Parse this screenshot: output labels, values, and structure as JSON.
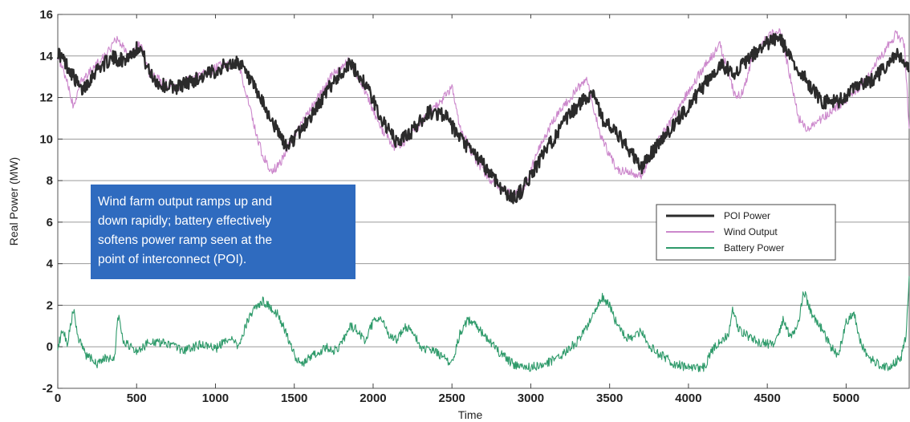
{
  "chart_data": {
    "type": "line",
    "title": "",
    "xlabel": "Time",
    "ylabel": "Real Power (MW)",
    "xlim": [
      0,
      5400
    ],
    "ylim": [
      -2,
      16
    ],
    "xticks": [
      0,
      500,
      1000,
      1500,
      2000,
      2500,
      3000,
      3500,
      4000,
      4500,
      5000
    ],
    "yticks": [
      -2,
      0,
      2,
      4,
      6,
      8,
      10,
      12,
      14,
      16
    ],
    "grid": "horizontal",
    "legend_position": "right",
    "series": [
      {
        "name": "POI Power",
        "color": "#2b2b2b",
        "x": [
          0,
          80,
          150,
          250,
          350,
          420,
          520,
          580,
          650,
          750,
          850,
          950,
          1050,
          1150,
          1250,
          1350,
          1450,
          1550,
          1650,
          1750,
          1850,
          1950,
          2050,
          2150,
          2250,
          2350,
          2450,
          2550,
          2650,
          2750,
          2850,
          2900,
          2950,
          3050,
          3150,
          3250,
          3350,
          3400,
          3450,
          3550,
          3650,
          3700,
          3800,
          3900,
          4000,
          4100,
          4200,
          4300,
          4400,
          4500,
          4580,
          4650,
          4750,
          4850,
          4950,
          5050,
          5150,
          5250,
          5320,
          5400
        ],
        "y": [
          14.2,
          13.3,
          12.3,
          13.4,
          13.9,
          13.8,
          14.5,
          13.2,
          12.6,
          12.5,
          12.8,
          13.1,
          13.5,
          13.7,
          12.4,
          11.0,
          9.6,
          10.5,
          11.6,
          12.8,
          13.6,
          12.7,
          11.0,
          9.8,
          10.4,
          11.3,
          11.2,
          10.0,
          9.2,
          8.3,
          7.3,
          7.2,
          7.6,
          8.9,
          10.1,
          11.2,
          12.0,
          12.3,
          11.0,
          10.2,
          9.2,
          8.6,
          9.7,
          10.6,
          11.6,
          12.6,
          13.6,
          13.2,
          14.0,
          14.6,
          14.9,
          13.8,
          12.8,
          11.8,
          11.8,
          12.4,
          12.8,
          13.4,
          14.1,
          13.3
        ]
      },
      {
        "name": "Wind Output",
        "color": "#cc88cc",
        "x": [
          0,
          60,
          100,
          150,
          250,
          320,
          380,
          450,
          520,
          580,
          650,
          750,
          850,
          950,
          1050,
          1150,
          1250,
          1300,
          1350,
          1400,
          1450,
          1550,
          1650,
          1750,
          1850,
          1950,
          2050,
          2150,
          2250,
          2350,
          2450,
          2500,
          2550,
          2650,
          2750,
          2850,
          2900,
          2950,
          3050,
          3150,
          3250,
          3350,
          3400,
          3450,
          3550,
          3650,
          3700,
          3800,
          3900,
          4000,
          4100,
          4200,
          4300,
          4350,
          4400,
          4500,
          4580,
          4650,
          4700,
          4750,
          4850,
          4950,
          5050,
          5150,
          5250,
          5320,
          5370,
          5400
        ],
        "y": [
          14.0,
          12.8,
          11.5,
          12.8,
          13.6,
          14.2,
          14.9,
          13.9,
          14.6,
          13.2,
          12.8,
          12.4,
          13.0,
          13.2,
          13.6,
          13.5,
          10.5,
          9.2,
          8.5,
          8.7,
          9.5,
          10.8,
          12.0,
          13.2,
          13.8,
          12.3,
          10.5,
          9.5,
          10.3,
          11.2,
          12.0,
          12.5,
          10.5,
          9.0,
          8.0,
          7.5,
          7.3,
          7.5,
          9.5,
          11.0,
          12.0,
          12.9,
          11.5,
          10.0,
          8.5,
          8.4,
          8.2,
          9.8,
          11.0,
          12.3,
          13.5,
          14.5,
          12.0,
          12.3,
          13.8,
          14.9,
          15.3,
          12.8,
          11.0,
          10.5,
          11.0,
          11.6,
          12.2,
          13.2,
          14.3,
          15.1,
          14.5,
          10.5
        ]
      },
      {
        "name": "Battery Power",
        "color": "#2e9a6a",
        "x": [
          0,
          30,
          60,
          100,
          130,
          180,
          250,
          300,
          360,
          380,
          420,
          500,
          600,
          700,
          800,
          900,
          1000,
          1100,
          1150,
          1200,
          1250,
          1300,
          1350,
          1400,
          1450,
          1500,
          1550,
          1600,
          1650,
          1700,
          1750,
          1800,
          1850,
          1900,
          1950,
          2000,
          2050,
          2100,
          2150,
          2200,
          2250,
          2300,
          2400,
          2500,
          2550,
          2600,
          2650,
          2700,
          2750,
          2800,
          2850,
          2900,
          3000,
          3100,
          3200,
          3300,
          3350,
          3400,
          3450,
          3500,
          3550,
          3600,
          3650,
          3700,
          3750,
          3800,
          3850,
          3900,
          4000,
          4100,
          4150,
          4200,
          4250,
          4280,
          4320,
          4380,
          4450,
          4550,
          4600,
          4650,
          4700,
          4730,
          4780,
          4850,
          4900,
          4950,
          5000,
          5050,
          5100,
          5150,
          5200,
          5250,
          5300,
          5350,
          5380,
          5400
        ],
        "y": [
          0.0,
          0.8,
          0.2,
          1.8,
          0.4,
          -0.4,
          -0.8,
          -0.5,
          -0.6,
          1.6,
          0.2,
          -0.2,
          0.3,
          0.1,
          -0.2,
          0.1,
          -0.1,
          0.5,
          0.0,
          1.2,
          1.8,
          2.2,
          1.9,
          1.5,
          0.6,
          -0.4,
          -0.9,
          -0.5,
          -0.3,
          0.0,
          -0.2,
          0.1,
          1.0,
          0.8,
          0.3,
          1.2,
          1.5,
          0.6,
          0.3,
          1.0,
          0.8,
          0.0,
          -0.3,
          -0.8,
          0.6,
          1.3,
          1.0,
          0.6,
          0.2,
          -0.3,
          -0.6,
          -0.9,
          -1.0,
          -0.8,
          -0.4,
          0.3,
          0.9,
          1.5,
          2.4,
          2.0,
          1.0,
          0.5,
          0.4,
          0.8,
          0.1,
          -0.3,
          -0.5,
          -0.8,
          -1.0,
          -1.0,
          -0.2,
          0.3,
          0.5,
          1.7,
          0.8,
          0.5,
          0.2,
          0.1,
          1.3,
          0.4,
          1.2,
          2.7,
          1.6,
          0.8,
          0.0,
          -0.4,
          1.2,
          1.6,
          0.0,
          -0.6,
          -0.8,
          -1.0,
          -0.8,
          -0.5,
          0.5,
          3.4
        ]
      }
    ]
  },
  "callout": {
    "lines": [
      "Wind farm output ramps up and",
      "down rapidly; battery effectively",
      "softens power ramp seen at the",
      "point of interconnect (POI)."
    ],
    "color": "#2f6bbf"
  }
}
